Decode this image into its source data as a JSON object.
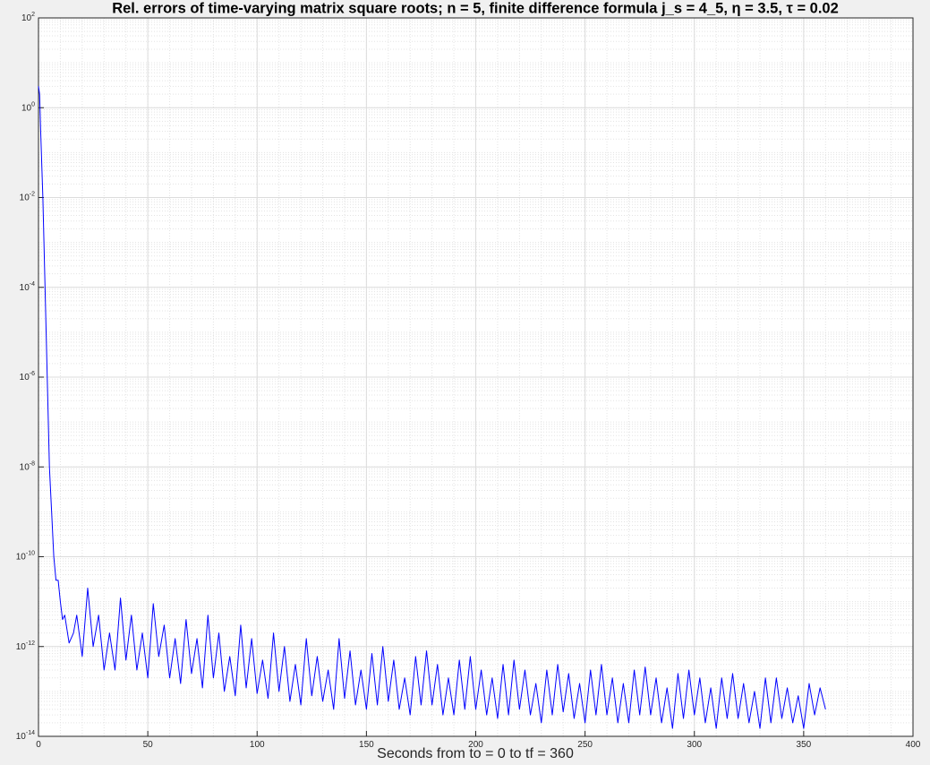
{
  "chart_data": {
    "type": "line",
    "title": "Rel. errors of time-varying matrix square roots; n = 5, finite difference formula j_s = 4_5, η = 3.5, τ = 0.02",
    "x_label": "Seconds from to = 0 to tf = 360",
    "log_y": true,
    "grid": true,
    "minor_grid": true,
    "xlim": [
      0,
      400
    ],
    "xticks": [
      0,
      50,
      100,
      150,
      200,
      250,
      300,
      350,
      400
    ],
    "ylim": [
      1e-14,
      100
    ],
    "yticks": [
      {
        "value": 1e-14,
        "label": "10",
        "exponent": "-14"
      },
      {
        "value": 1e-12,
        "label": "10",
        "exponent": "-12"
      },
      {
        "value": 1e-10,
        "label": "10",
        "exponent": "-10"
      },
      {
        "value": 1e-08,
        "label": "10",
        "exponent": "-8"
      },
      {
        "value": 1e-06,
        "label": "10",
        "exponent": "-6"
      },
      {
        "value": 0.0001,
        "label": "10",
        "exponent": "-4"
      },
      {
        "value": 0.01,
        "label": "10",
        "exponent": "-2"
      },
      {
        "value": 1,
        "label": "10",
        "exponent": "0"
      },
      {
        "value": 100,
        "label": "10",
        "exponent": "2"
      }
    ],
    "series": [
      {
        "color": "#0000ff",
        "x": [
          0,
          0.5,
          1,
          2,
          3,
          4,
          5,
          6,
          7,
          8,
          9,
          10,
          11,
          12,
          14,
          16,
          17.5,
          20,
          22.5,
          25,
          27.5,
          30,
          32.5,
          35,
          37.5,
          40,
          42.5,
          45,
          47.5,
          50,
          52.5,
          55,
          57.5,
          60,
          62.5,
          65,
          67.5,
          70,
          72.5,
          75,
          77.5,
          80,
          82.5,
          85,
          87.5,
          90,
          92.5,
          95,
          97.5,
          100,
          102.5,
          105,
          107.5,
          110,
          112.5,
          115,
          117.5,
          120,
          122.5,
          125,
          127.5,
          130,
          132.5,
          135,
          137.5,
          140,
          142.5,
          145,
          147.5,
          150,
          152.5,
          155,
          157.5,
          160,
          162.5,
          165,
          167.5,
          170,
          172.5,
          175,
          177.5,
          180,
          182.5,
          185,
          187.5,
          190,
          192.5,
          195,
          197.5,
          200,
          202.5,
          205,
          207.5,
          210,
          212.5,
          215,
          217.5,
          220,
          222.5,
          225,
          227.5,
          230,
          232.5,
          235,
          237.5,
          240,
          242.5,
          245,
          247.5,
          250,
          252.5,
          255,
          257.5,
          260,
          262.5,
          265,
          267.5,
          270,
          272.5,
          275,
          277.5,
          280,
          282.5,
          285,
          287.5,
          290,
          292.5,
          295,
          297.5,
          300,
          302.5,
          305,
          307.5,
          310,
          312.5,
          315,
          317.5,
          320,
          322.5,
          325,
          327.5,
          330,
          332.5,
          335,
          337.5,
          340,
          342.5,
          345,
          347.5,
          350,
          352.5,
          355,
          357.5,
          360
        ],
        "values": [
          3,
          2,
          0.3,
          0.01,
          0.0001,
          1e-06,
          1e-08,
          1e-09,
          1e-10,
          3e-11,
          3e-11,
          1e-11,
          4e-12,
          5e-12,
          1.2e-12,
          2e-12,
          5e-12,
          6e-13,
          2e-11,
          1e-12,
          5e-12,
          3e-13,
          2e-12,
          3e-13,
          1.2e-11,
          5e-13,
          5e-12,
          3e-13,
          2e-12,
          2e-13,
          9e-12,
          6e-13,
          3e-12,
          2e-13,
          1.5e-12,
          1.5e-13,
          4e-12,
          2.5e-13,
          1.5e-12,
          1.2e-13,
          5e-12,
          2e-13,
          2e-12,
          1e-13,
          6e-13,
          8e-14,
          3e-12,
          1.2e-13,
          1.5e-12,
          9e-14,
          5e-13,
          7e-14,
          2e-12,
          1e-13,
          1e-12,
          6e-14,
          4e-13,
          5e-14,
          1.5e-12,
          8e-14,
          6e-13,
          6e-14,
          3e-13,
          4e-14,
          1.5e-12,
          7e-14,
          8e-13,
          5e-14,
          3e-13,
          4e-14,
          7e-13,
          5e-14,
          1e-12,
          6e-14,
          5e-13,
          4e-14,
          2e-13,
          3e-14,
          6e-13,
          5e-14,
          8e-13,
          5e-14,
          4e-13,
          3e-14,
          2e-13,
          3e-14,
          5e-13,
          4e-14,
          6e-13,
          4e-14,
          3e-13,
          3e-14,
          2e-13,
          2.5e-14,
          4e-13,
          3e-14,
          5e-13,
          4e-14,
          3e-13,
          3e-14,
          1.5e-13,
          2e-14,
          3e-13,
          3e-14,
          4e-13,
          3.5e-14,
          2.5e-13,
          2.5e-14,
          1.5e-13,
          2e-14,
          3e-13,
          3e-14,
          4e-13,
          3e-14,
          2e-13,
          2e-14,
          1.5e-13,
          2e-14,
          3e-13,
          3e-14,
          3.5e-13,
          3e-14,
          2e-13,
          2e-14,
          1.2e-13,
          1.5e-14,
          2.5e-13,
          2.5e-14,
          3e-13,
          3e-14,
          2e-13,
          2e-14,
          1.2e-13,
          1.5e-14,
          2e-13,
          2.5e-14,
          2.5e-13,
          2.5e-14,
          1.5e-13,
          2e-14,
          1e-13,
          1.5e-14,
          2e-13,
          2e-14,
          2e-13,
          2.5e-14,
          1.2e-13,
          2e-14,
          8e-14,
          1.5e-14,
          1.5e-13,
          3e-14,
          1.2e-13,
          4e-14
        ]
      }
    ]
  }
}
